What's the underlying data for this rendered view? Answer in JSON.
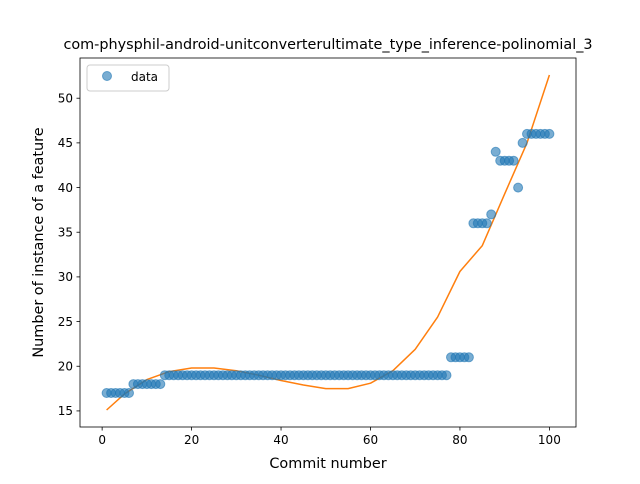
{
  "chart_data": {
    "type": "scatter",
    "title": "com-physphil-android-unitconverterultimate_type_inference-polinomial_3",
    "xlabel": "Commit number",
    "ylabel": "Number of instance of a feature",
    "xlim": [
      -4.95,
      105.95
    ],
    "ylim": [
      13.2,
      54.5
    ],
    "xticks": [
      0,
      20,
      40,
      60,
      80,
      100
    ],
    "yticks": [
      15,
      20,
      25,
      30,
      35,
      40,
      45,
      50
    ],
    "grid": false,
    "legend": {
      "position": "upper-left",
      "entries": [
        "data"
      ]
    },
    "series": [
      {
        "name": "data",
        "kind": "scatter",
        "color": "#1f77b4",
        "x": [
          1,
          2,
          3,
          4,
          5,
          6,
          7,
          8,
          9,
          10,
          11,
          12,
          13,
          14,
          15,
          16,
          17,
          18,
          19,
          20,
          21,
          22,
          23,
          24,
          25,
          26,
          27,
          28,
          29,
          30,
          31,
          32,
          33,
          34,
          35,
          36,
          37,
          38,
          39,
          40,
          41,
          42,
          43,
          44,
          45,
          46,
          47,
          48,
          49,
          50,
          51,
          52,
          53,
          54,
          55,
          56,
          57,
          58,
          59,
          60,
          61,
          62,
          63,
          64,
          65,
          66,
          67,
          68,
          69,
          70,
          71,
          72,
          73,
          74,
          75,
          76,
          77,
          78,
          79,
          80,
          81,
          82,
          83,
          84,
          85,
          86,
          87,
          88,
          89,
          90,
          91,
          92,
          93,
          94,
          95,
          96,
          97,
          98,
          99,
          100
        ],
        "y": [
          17,
          17,
          17,
          17,
          17,
          17,
          18,
          18,
          18,
          18,
          18,
          18,
          18,
          19,
          19,
          19,
          19,
          19,
          19,
          19,
          19,
          19,
          19,
          19,
          19,
          19,
          19,
          19,
          19,
          19,
          19,
          19,
          19,
          19,
          19,
          19,
          19,
          19,
          19,
          19,
          19,
          19,
          19,
          19,
          19,
          19,
          19,
          19,
          19,
          19,
          19,
          19,
          19,
          19,
          19,
          19,
          19,
          19,
          19,
          19,
          19,
          19,
          19,
          19,
          19,
          19,
          19,
          19,
          19,
          19,
          19,
          19,
          19,
          19,
          19,
          19,
          19,
          21,
          21,
          21,
          21,
          21,
          36,
          36,
          36,
          36,
          37,
          44,
          43,
          43,
          43,
          43,
          40,
          45,
          46,
          46,
          46,
          46,
          46,
          46
        ]
      },
      {
        "name": "",
        "kind": "line",
        "color": "#ff7f0e",
        "x": [
          1,
          5,
          10,
          15,
          20,
          25,
          30,
          35,
          40,
          45,
          50,
          55,
          60,
          65,
          70,
          75,
          80,
          85,
          90,
          95,
          100
        ],
        "y": [
          15.1,
          16.9,
          18.5,
          19.4,
          19.8,
          19.8,
          19.5,
          19.0,
          18.4,
          17.9,
          17.5,
          17.5,
          18.1,
          19.5,
          21.9,
          25.5,
          30.6,
          33.5,
          39.3,
          45.0,
          52.6
        ]
      }
    ]
  }
}
